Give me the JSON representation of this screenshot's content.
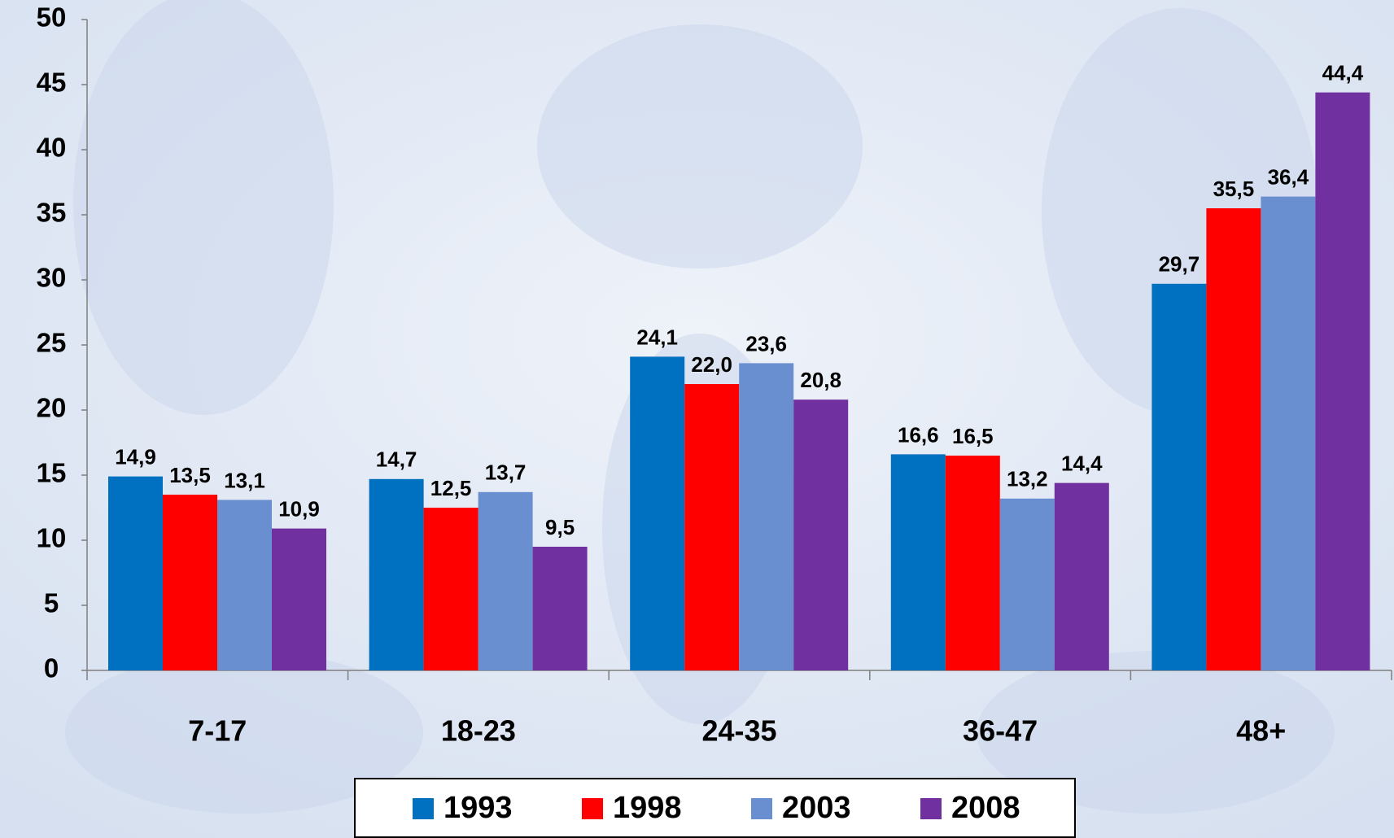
{
  "chart_data": {
    "type": "bar",
    "categories": [
      "7-17",
      "18-23",
      "24-35",
      "36-47",
      "48+"
    ],
    "series": [
      {
        "name": "1993",
        "color": "#0070c0",
        "values": [
          14.9,
          14.7,
          24.1,
          16.6,
          29.7
        ],
        "value_labels": [
          "14,9",
          "14,7",
          "24,1",
          "16,6",
          "29,7"
        ]
      },
      {
        "name": "1998",
        "color": "#ff0000",
        "values": [
          13.5,
          12.5,
          22.0,
          16.5,
          35.5
        ],
        "value_labels": [
          "13,5",
          "12,5",
          "22,0",
          "16,5",
          "35,5"
        ]
      },
      {
        "name": "2003",
        "color": "#6a8fd0",
        "values": [
          13.1,
          13.7,
          23.6,
          13.2,
          36.4
        ],
        "value_labels": [
          "13,1",
          "13,7",
          "23,6",
          "13,2",
          "36,4"
        ]
      },
      {
        "name": "2008",
        "color": "#7030a0",
        "values": [
          10.9,
          9.5,
          20.8,
          14.4,
          44.4
        ],
        "value_labels": [
          "10,9",
          "9,5",
          "20,8",
          "14,4",
          "44,4"
        ]
      }
    ],
    "ylim": [
      0,
      50
    ],
    "yticks": [
      0,
      5,
      10,
      15,
      20,
      25,
      30,
      35,
      40,
      45,
      50
    ],
    "grid": false,
    "legend": "bottom"
  }
}
